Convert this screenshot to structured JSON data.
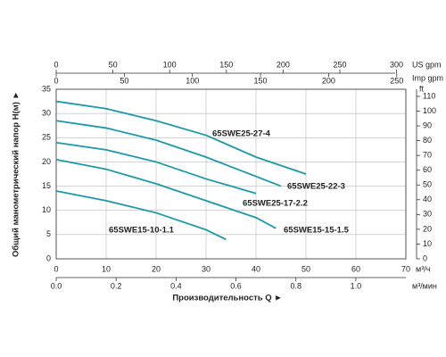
{
  "chart_data": {
    "type": "line",
    "xlabel": "м³/ч",
    "xlim": [
      0,
      70
    ],
    "xticks": [
      0,
      10,
      20,
      30,
      40,
      50,
      60,
      70
    ],
    "ylabel": "Общий манометрический напор  H(м)  ►",
    "ylim": [
      0,
      35
    ],
    "yticks": [
      0,
      5,
      10,
      15,
      20,
      25,
      30,
      35
    ],
    "y2label": "ft",
    "y2lim": [
      0,
      114.8
    ],
    "y2ticks": [
      0,
      10,
      20,
      30,
      40,
      50,
      60,
      70,
      80,
      90,
      100,
      110
    ],
    "x2": {
      "label": "US  gpm",
      "lim": [
        0,
        308.2
      ],
      "ticks": [
        0,
        50,
        100,
        150,
        200,
        250,
        300
      ]
    },
    "x3": {
      "label": "Imp gpm",
      "lim": [
        0,
        256.7
      ],
      "ticks": [
        0,
        50,
        100,
        150,
        200,
        250
      ]
    },
    "x4": {
      "label": "м³/мин",
      "title": "Производительность Q  ►",
      "lim": [
        0,
        1.167
      ],
      "ticks": [
        {
          "value": 0,
          "label": "0.0"
        },
        {
          "value": 0.2,
          "label": "0.2"
        },
        {
          "value": 0.4,
          "label": "0.4"
        },
        {
          "value": 0.6,
          "label": "0.6"
        },
        {
          "value": 0.8,
          "label": "0.8"
        },
        {
          "value": 1.0,
          "label": "1.0"
        }
      ]
    },
    "grid": true,
    "series": [
      {
        "name": "65SWE25-27-4",
        "color": "#1a9aa8",
        "x": [
          0,
          10,
          20,
          30,
          40,
          50
        ],
        "values": [
          32.5,
          31,
          28.5,
          25.5,
          21,
          17.5
        ]
      },
      {
        "name": "65SWE25-22-3",
        "color": "#1a9aa8",
        "x": [
          0,
          10,
          20,
          30,
          40,
          45
        ],
        "values": [
          28.5,
          27,
          24.5,
          21,
          17,
          15
        ]
      },
      {
        "name": "65SWE25-17-2.2",
        "color": "#1a9aa8",
        "x": [
          0,
          10,
          20,
          30,
          40
        ],
        "values": [
          24,
          22.5,
          20,
          16.5,
          13.5
        ]
      },
      {
        "name": "65SWE15-15-1.5",
        "color": "#1a9aa8",
        "x": [
          0,
          10,
          20,
          30,
          40,
          44
        ],
        "values": [
          20.5,
          18.5,
          15.5,
          12,
          8.5,
          6.3
        ]
      },
      {
        "name": "65SWE15-10-1.1",
        "color": "#1a9aa8",
        "x": [
          0,
          10,
          20,
          30,
          34
        ],
        "values": [
          14,
          12,
          9.5,
          6,
          4
        ]
      }
    ]
  }
}
